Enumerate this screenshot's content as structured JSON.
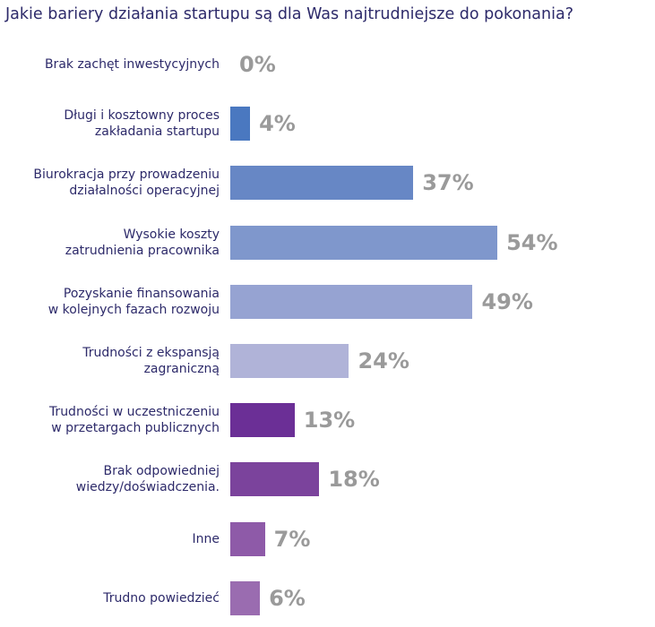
{
  "chart_data": {
    "type": "bar",
    "orientation": "horizontal",
    "title": "Jakie bariery działania startupu są dla Was najtrudniejsze do pokonania?",
    "categories": [
      "Brak zachęt inwestycyjnych",
      "Długi i kosztowny proces\nzakładania startupu",
      "Biurokracja przy prowadzeniu\ndziałalności operacyjnej",
      "Wysokie koszty\nzatrudnienia pracownika",
      "Pozyskanie finansowania\nw kolejnych fazach rozwoju",
      "Trudności z ekspansją\nzagraniczną",
      "Trudności w uczestniczeniu\nw przetargach publicznych",
      "Brak odpowiedniej\nwiedzy/doświadczenia.",
      "Inne",
      "Trudno powiedzieć"
    ],
    "values": [
      0,
      4,
      37,
      54,
      49,
      24,
      13,
      18,
      7,
      6
    ],
    "value_labels": [
      "0%",
      "4%",
      "37%",
      "54%",
      "49%",
      "24%",
      "13%",
      "18%",
      "7%",
      "6%"
    ],
    "colors": [
      "#2e74b5",
      "#4a78c0",
      "#6787c5",
      "#7f97cc",
      "#96a3d2",
      "#b0b3d8",
      "#6b2f96",
      "#7b439c",
      "#8e5aa8",
      "#9a6cb0"
    ]
  }
}
